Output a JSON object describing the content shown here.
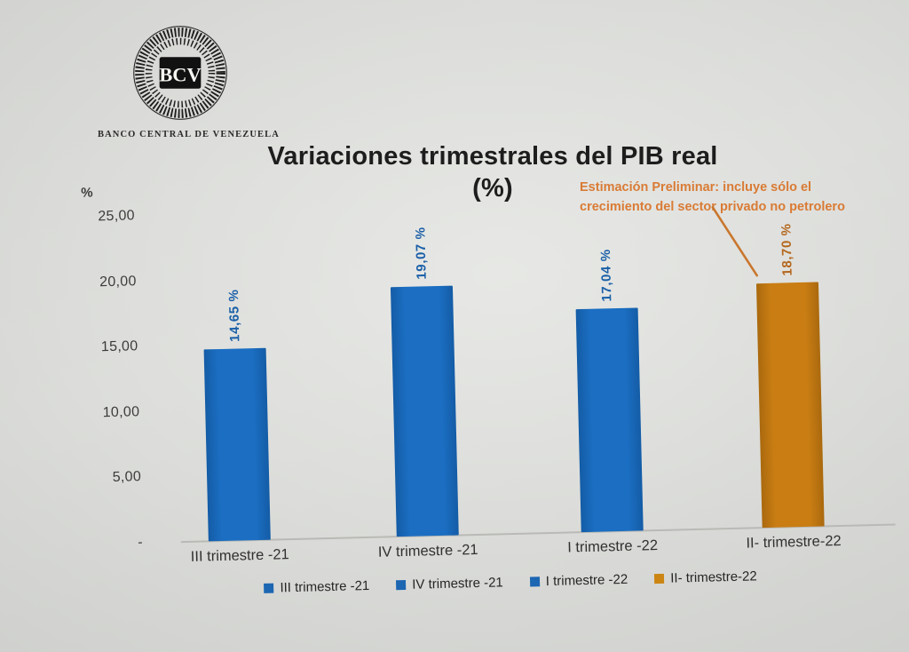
{
  "header": {
    "logo_text": "BCV",
    "org_name": "BANCO CENTRAL DE VENEZUELA",
    "title_line1": "Variaciones trimestrales del PIB real",
    "title_line2": "(%)"
  },
  "annotation": {
    "line1": "Estimación Preliminar: incluye sólo el",
    "line2": "crecimiento del sector privado no petrolero",
    "color": "#d97b35"
  },
  "chart_data": {
    "type": "bar",
    "title": "Variaciones trimestrales del PIB real (%)",
    "xlabel": "",
    "ylabel": "%",
    "ylim": [
      0,
      25
    ],
    "grid": false,
    "categories": [
      "III trimestre -21",
      "IV trimestre -21",
      "I trimestre -22",
      "II- trimestre-22"
    ],
    "values": [
      14.65,
      19.07,
      17.04,
      18.7
    ],
    "value_labels": [
      "14,65 %",
      "19,07 %",
      "17,04 %",
      "18,70 %"
    ],
    "bar_colors": [
      "#1b6ec2",
      "#1b6ec2",
      "#1b6ec2",
      "#c97d13"
    ],
    "bar_edge_colors": [
      "#145ca6",
      "#145ca6",
      "#145ca6",
      "#aa690e"
    ],
    "value_label_colors": [
      "#1a5fa8",
      "#1a5fa8",
      "#1a5fa8",
      "#b4661c"
    ],
    "y_ticks": [
      {
        "label": "25,00",
        "value": 25
      },
      {
        "label": "20,00",
        "value": 20
      },
      {
        "label": "15,00",
        "value": 15
      },
      {
        "label": "10,00",
        "value": 10
      },
      {
        "label": "5,00",
        "value": 5
      },
      {
        "label": "-",
        "value": 0
      }
    ],
    "legend": {
      "position": "bottom",
      "entries": [
        {
          "label": "III trimestre -21",
          "color": "#1c66b2"
        },
        {
          "label": "IV trimestre -21",
          "color": "#1c66b2"
        },
        {
          "label": "I trimestre -22",
          "color": "#1c66b2"
        },
        {
          "label": "II- trimestre-22",
          "color": "#cc8512"
        }
      ]
    },
    "annotation_text": "Estimación Preliminar: incluye sólo el crecimiento del sector privado no petrolero"
  }
}
